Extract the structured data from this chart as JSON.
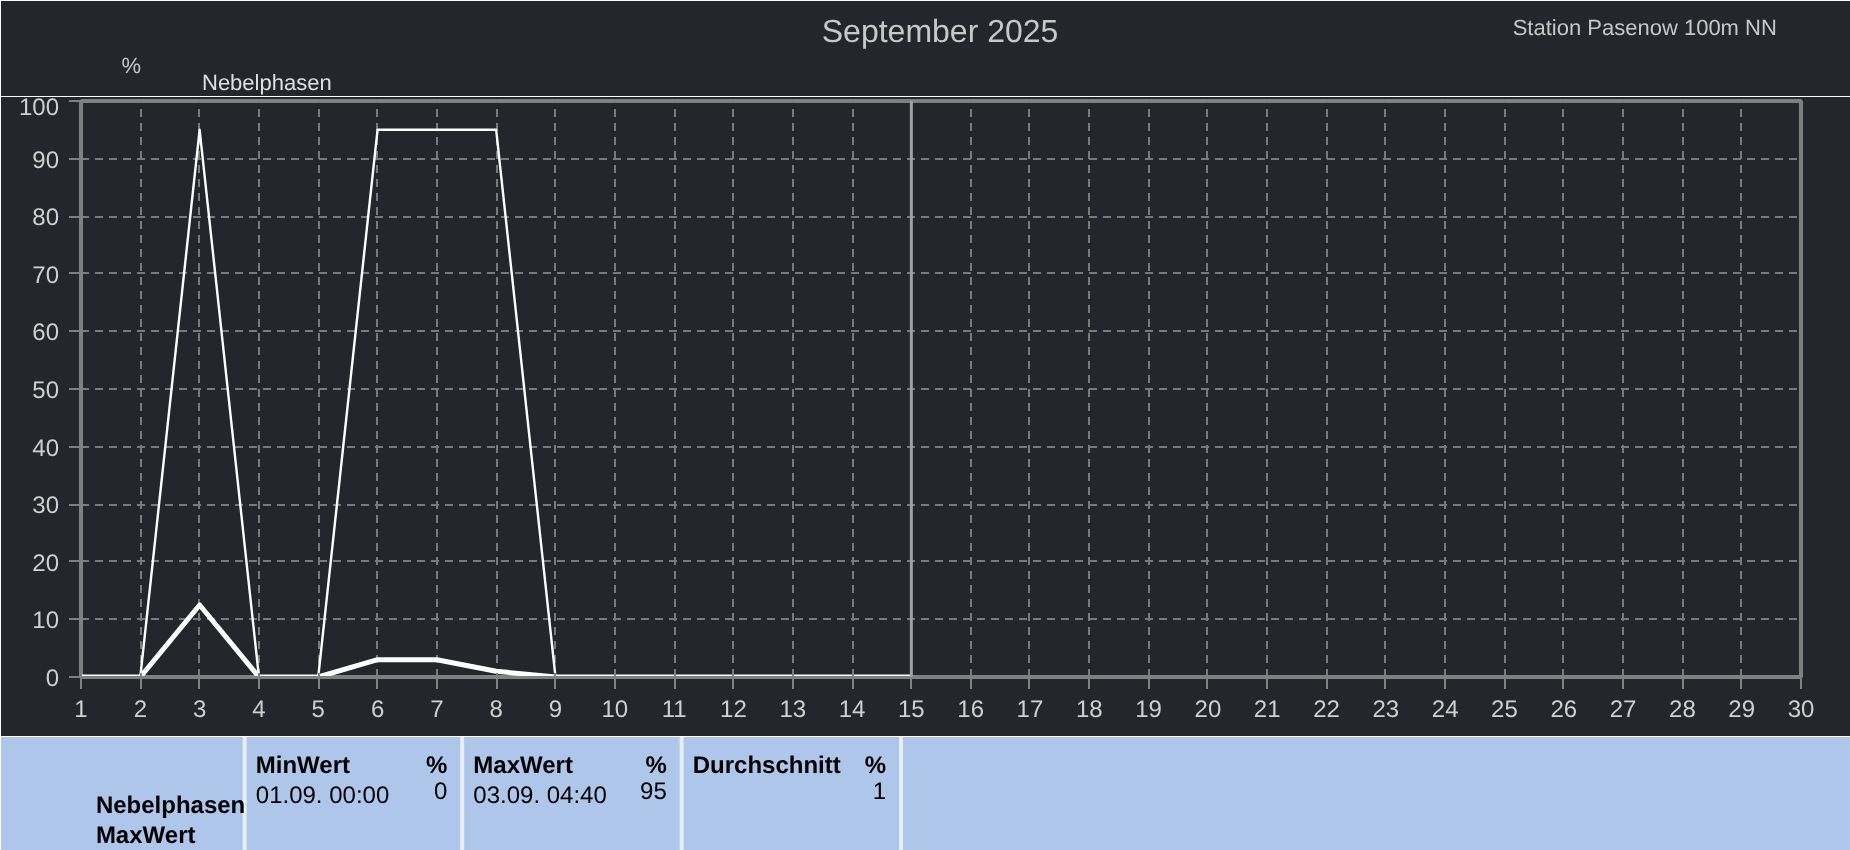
{
  "chart_data": {
    "type": "line",
    "title": "September 2025",
    "ylabel": "%",
    "x": [
      1,
      2,
      3,
      4,
      5,
      6,
      7,
      8,
      9,
      10,
      11,
      12,
      13,
      14,
      15
    ],
    "series": [
      {
        "name": "Nebelphasen",
        "color": "#ffffff",
        "values": [
          0,
          0,
          95,
          0,
          0,
          95,
          95,
          95,
          0,
          0,
          0,
          0,
          0,
          0,
          0
        ]
      },
      {
        "color": "#ffffff",
        "values": [
          0,
          0,
          12.5,
          0,
          0,
          3,
          3,
          1,
          0,
          0,
          0,
          0,
          0,
          0,
          0
        ]
      }
    ],
    "xlim": [
      1,
      30
    ],
    "xticks": [
      1,
      2,
      3,
      4,
      5,
      6,
      7,
      8,
      9,
      10,
      11,
      12,
      13,
      14,
      15,
      16,
      17,
      18,
      19,
      20,
      21,
      22,
      23,
      24,
      25,
      26,
      27,
      28,
      29,
      30
    ],
    "ylim": [
      0,
      100
    ],
    "yticks": [
      0,
      10,
      20,
      30,
      40,
      50,
      60,
      70,
      80,
      90,
      100
    ],
    "grid": true,
    "legend": "top left",
    "marker": "none",
    "line_style": "solid",
    "ref_lines": [
      {
        "axis": "x",
        "value": 15,
        "color": "#a0a0a0"
      }
    ],
    "annotations": [
      "Station Pasenow 100m NN",
      "Nebelphasen",
      "MaxWert",
      "MinWert",
      "%",
      "01.09.  00:00",
      "0",
      "MaxWert",
      "%",
      "03.09.  04:40",
      "95",
      "Durchschnitt",
      "%",
      "1"
    ]
  }
}
